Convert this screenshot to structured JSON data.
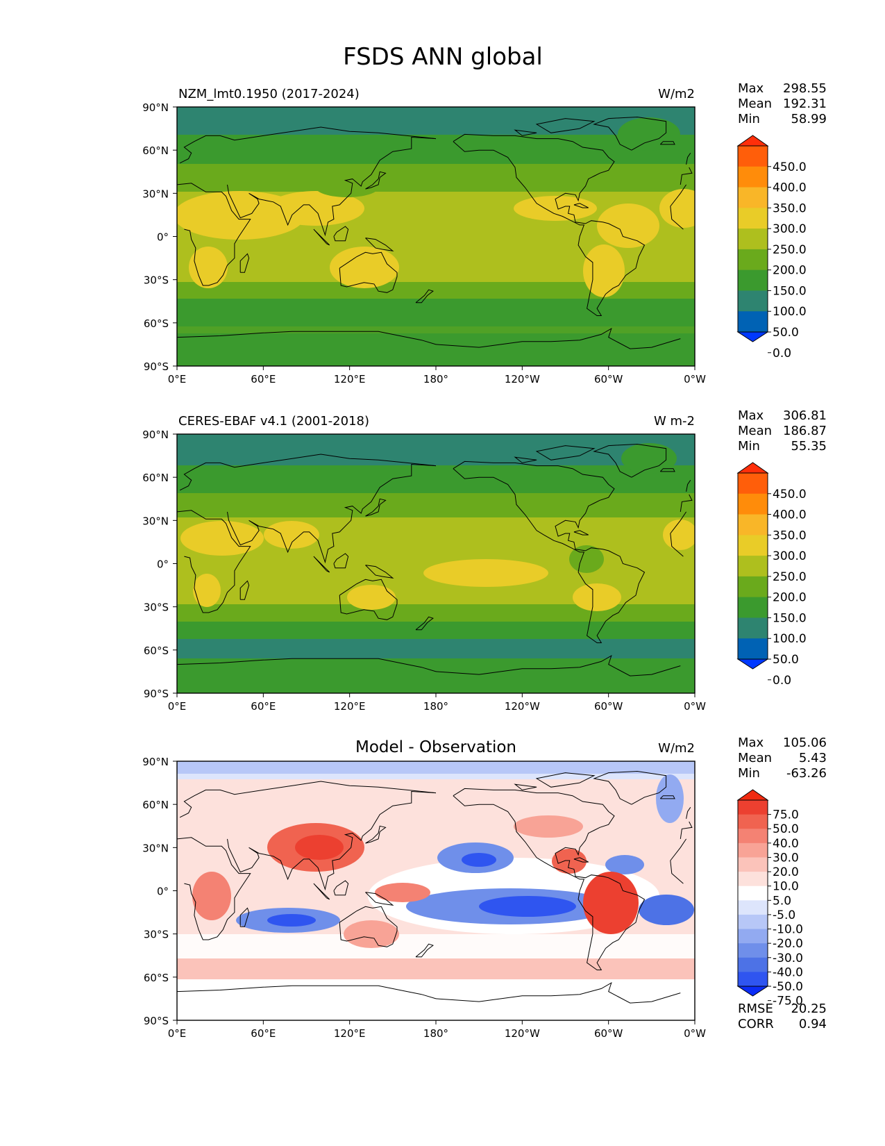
{
  "title": "FSDS ANN global",
  "lat_ticks": [
    "90°N",
    "60°N",
    "30°N",
    "0°",
    "30°S",
    "60°S",
    "90°S"
  ],
  "lon_ticks": [
    "0°E",
    "60°E",
    "120°E",
    "180°",
    "120°W",
    "60°W",
    "0°W"
  ],
  "stat_labels": {
    "max": "Max",
    "mean": "Mean",
    "min": "Min",
    "rmse": "RMSE",
    "corr": "CORR"
  },
  "panels": [
    {
      "left_title": "NZM_lmt0.1950 (2017-2024)",
      "center_title": "",
      "units": "W/m2",
      "stats": {
        "max": "298.55",
        "mean": "192.31",
        "min": "58.99"
      },
      "colorbar_labels": [
        "450.0",
        "400.0",
        "350.0",
        "300.0",
        "250.0",
        "200.0",
        "150.0",
        "100.0",
        "50.0",
        "0.0"
      ]
    },
    {
      "left_title": "CERES-EBAF v4.1 (2001-2018)",
      "center_title": "",
      "units": "W m-2",
      "stats": {
        "max": "306.81",
        "mean": "186.87",
        "min": "55.35"
      },
      "colorbar_labels": [
        "450.0",
        "400.0",
        "350.0",
        "300.0",
        "250.0",
        "200.0",
        "150.0",
        "100.0",
        "50.0",
        "0.0"
      ]
    },
    {
      "left_title": "",
      "center_title": "Model - Observation",
      "units": "W/m2",
      "stats": {
        "max": "105.06",
        "mean": "5.43",
        "min": "-63.26"
      },
      "colorbar_labels": [
        "75.0",
        "50.0",
        "40.0",
        "30.0",
        "20.0",
        "10.0",
        "5.0",
        "-5.0",
        "-10.0",
        "-20.0",
        "-30.0",
        "-40.0",
        "-50.0",
        "-75.0"
      ],
      "rmse": "20.25",
      "corr": "0.94"
    }
  ],
  "colors": {
    "abs_scale": [
      "#0038ff",
      "#0062b4",
      "#2e8470",
      "#3b9a2e",
      "#6aaa1c",
      "#aebf1e",
      "#e9cc28",
      "#f9b628",
      "#ff8c0a",
      "#ff5e0a",
      "#ff2f0a"
    ],
    "diff_scale": [
      "#0b2cf6",
      "#2f55f0",
      "#4d72e6",
      "#6f8fea",
      "#92aaf1",
      "#b7c7f7",
      "#dde5fc",
      "#ffffff",
      "#fde1dc",
      "#fbc3ba",
      "#f8a396",
      "#f48273",
      "#f06350",
      "#ec4030",
      "#f02a10"
    ],
    "land_line": "#000000"
  }
}
